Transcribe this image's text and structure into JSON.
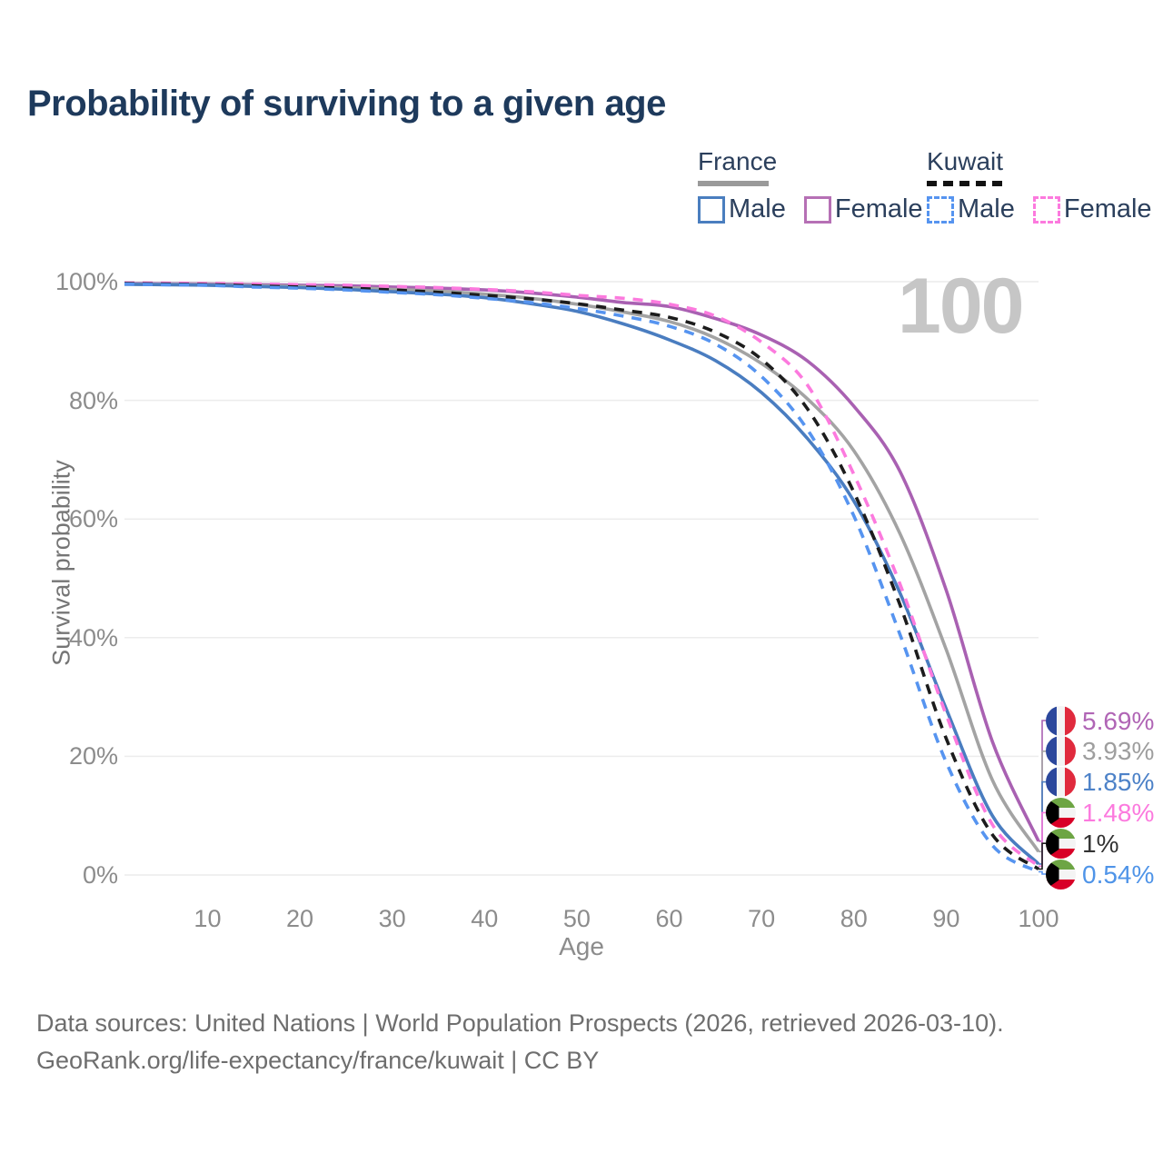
{
  "title": "Probability of surviving to a given age",
  "legend": {
    "groups": [
      {
        "label": "France",
        "line_style": "solid",
        "line_color": "#9a9a9a",
        "items": [
          {
            "label": "Male",
            "color": "#4a7ebf",
            "dash": false
          },
          {
            "label": "Female",
            "color": "#b670b5",
            "dash": false
          }
        ]
      },
      {
        "label": "Kuwait",
        "line_style": "dashed",
        "line_color": "#121212",
        "items": [
          {
            "label": "Male",
            "color": "#5694f0",
            "dash": true
          },
          {
            "label": "Female",
            "color": "#fc7ade",
            "dash": true
          }
        ]
      }
    ]
  },
  "chart_data": {
    "type": "line",
    "title": "Probability of surviving to a given age",
    "xlabel": "Age",
    "ylabel": "Survival probability",
    "xlim": [
      1,
      100
    ],
    "ylim": [
      0,
      100
    ],
    "xticks": [
      10,
      20,
      30,
      40,
      50,
      60,
      70,
      80,
      90,
      100
    ],
    "yticks": [
      0,
      20,
      40,
      60,
      80,
      100
    ],
    "ytick_suffix": "%",
    "grid": true,
    "watermark": "100",
    "x": [
      1,
      5,
      10,
      15,
      20,
      25,
      30,
      35,
      40,
      45,
      50,
      55,
      60,
      65,
      70,
      75,
      80,
      85,
      90,
      95,
      100
    ],
    "series": [
      {
        "name": "France Female",
        "country": "France",
        "sex": "Female",
        "color": "#a961b2",
        "dash": "solid",
        "values": [
          99.7,
          99.65,
          99.6,
          99.5,
          99.4,
          99.3,
          99.1,
          98.9,
          98.6,
          98.1,
          97.4,
          96.5,
          95.8,
          93.8,
          91.0,
          86.6,
          79.0,
          68.0,
          48.0,
          22.5,
          5.69
        ],
        "end_label": "5.69%"
      },
      {
        "name": "France Both sexes",
        "country": "France",
        "sex": "Both",
        "color": "#a3a3a3",
        "dash": "solid",
        "values": [
          99.6,
          99.55,
          99.5,
          99.35,
          99.2,
          99.0,
          98.7,
          98.4,
          97.9,
          97.2,
          96.2,
          94.9,
          93.3,
          90.5,
          86.2,
          80.2,
          71.5,
          57.5,
          38.0,
          16.0,
          3.93
        ],
        "end_label": "3.93%"
      },
      {
        "name": "France Male",
        "country": "France",
        "sex": "Male",
        "color": "#4a7dc0",
        "dash": "solid",
        "values": [
          99.55,
          99.5,
          99.4,
          99.2,
          99.0,
          98.7,
          98.3,
          97.9,
          97.3,
          96.3,
          95.0,
          92.9,
          90.2,
          86.7,
          81.3,
          73.5,
          63.0,
          47.5,
          28.0,
          10.0,
          1.85
        ],
        "end_label": "1.85%"
      },
      {
        "name": "Kuwait Female",
        "country": "Kuwait",
        "sex": "Female",
        "color": "#fc7ade",
        "dash": "dashed",
        "values": [
          99.8,
          99.75,
          99.7,
          99.6,
          99.5,
          99.4,
          99.2,
          99.0,
          98.7,
          98.3,
          97.7,
          97.2,
          96.2,
          94.2,
          89.8,
          82.5,
          67.5,
          49.0,
          27.0,
          8.5,
          1.48
        ],
        "end_label": "1.48%"
      },
      {
        "name": "Kuwait Both sexes",
        "country": "Kuwait",
        "sex": "Both",
        "color": "#1c1c1c",
        "dash": "dashed",
        "values": [
          99.7,
          99.6,
          99.5,
          99.3,
          99.1,
          98.9,
          98.6,
          98.2,
          97.7,
          97.1,
          96.3,
          95.2,
          94.0,
          91.5,
          86.9,
          78.5,
          64.5,
          45.5,
          23.0,
          6.8,
          1.0
        ],
        "end_label": "1%"
      },
      {
        "name": "Kuwait Male",
        "country": "Kuwait",
        "sex": "Male",
        "color": "#5694f0",
        "dash": "dashed",
        "values": [
          99.6,
          99.5,
          99.4,
          99.1,
          98.9,
          98.6,
          98.2,
          97.8,
          97.2,
          96.5,
          95.5,
          94.2,
          92.5,
          89.5,
          84.0,
          75.0,
          60.5,
          40.5,
          19.0,
          5.0,
          0.54
        ],
        "end_label": "0.54%"
      }
    ]
  },
  "end_labels": [
    {
      "flag": "france",
      "text": "5.69%",
      "color": "#b065b5"
    },
    {
      "flag": "france",
      "text": "3.93%",
      "color": "#9e9e9e"
    },
    {
      "flag": "france",
      "text": "1.85%",
      "color": "#4d82c8"
    },
    {
      "flag": "kuwait",
      "text": "1.48%",
      "color": "#fc7ade"
    },
    {
      "flag": "kuwait",
      "text": "1%",
      "color": "#333333"
    },
    {
      "flag": "kuwait",
      "text": "0.54%",
      "color": "#4f94e8"
    }
  ],
  "footer": {
    "line1": "Data sources: United Nations | World Population Prospects (2026, retrieved 2026-03-10).",
    "line2": "GeoRank.org/life-expectancy/france/kuwait | CC BY"
  }
}
